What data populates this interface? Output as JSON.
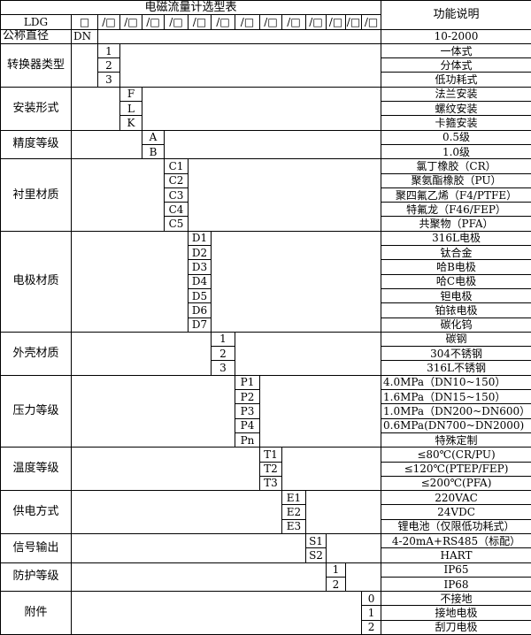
{
  "header": {
    "title": "电磁流量计选型表",
    "desc_title": "功能说明",
    "model": "LDG",
    "first_box": "□",
    "boxes": [
      "/□",
      "/□",
      "/□",
      "/□",
      "/□",
      "/□",
      "/□",
      "/□",
      "/□",
      "/□",
      "/□",
      "/□",
      "/□"
    ],
    "nominal_label": "公称直径",
    "nominal_code": "DN",
    "nominal_desc": "10-2000"
  },
  "groups": [
    {
      "label": "转换器类型",
      "col": 1,
      "codes": [
        "1",
        "2",
        "3"
      ],
      "descs": [
        "一体式",
        "分体式",
        "低功耗式"
      ]
    },
    {
      "label": "安装形式",
      "col": 2,
      "codes": [
        "F",
        "L",
        "K"
      ],
      "descs": [
        "法兰安装",
        "螺纹安装",
        "卡箍安装"
      ]
    },
    {
      "label": "精度等级",
      "col": 3,
      "codes": [
        "A",
        "B"
      ],
      "descs": [
        "0.5级",
        "1.0级"
      ]
    },
    {
      "label": "衬里材质",
      "col": 4,
      "codes": [
        "C1",
        "C2",
        "C3",
        "C4",
        "C5"
      ],
      "descs": [
        "氯丁橡胶（CR）",
        "聚氨酯橡胶（PU）",
        "聚四氟乙烯（F4/PTFE）",
        "特氟龙（F46/FEP）",
        "共聚物（PFA）"
      ]
    },
    {
      "label": "电极材质",
      "col": 5,
      "codes": [
        "D1",
        "D2",
        "D3",
        "D4",
        "D5",
        "D6",
        "D7"
      ],
      "descs": [
        "316L电极",
        "钛合金",
        "哈B电极",
        "哈C电极",
        "钽电极",
        "铂铱电极",
        "碳化钨"
      ]
    },
    {
      "label": "外壳材质",
      "col": 6,
      "codes": [
        "1",
        "2",
        "3"
      ],
      "descs": [
        "碳钢",
        "304不锈钢",
        "316L不锈钢"
      ]
    },
    {
      "label": "压力等级",
      "col": 7,
      "codes": [
        "P1",
        "P2",
        "P3",
        "P4",
        "Pn"
      ],
      "descs": [
        "4.0MPa（DN10~150）",
        "1.6MPa（DN15~150）",
        "1.0MPa（DN200~DN600）",
        "0.6MPa(DN700~DN2000)",
        "特殊定制"
      ],
      "left": [
        true,
        true,
        true,
        true,
        false
      ]
    },
    {
      "label": "温度等级",
      "col": 8,
      "codes": [
        "T1",
        "T2",
        "T3"
      ],
      "descs": [
        "≤80℃(CR/PU)",
        "≤120℃(PTEP/FEP)",
        "≤200℃(PFA)"
      ]
    },
    {
      "label": "供电方式",
      "col": 9,
      "codes": [
        "E1",
        "E2",
        "E3"
      ],
      "descs": [
        "220VAC",
        "24VDC",
        "锂电池（仅限低功耗式）"
      ]
    },
    {
      "label": "信号输出",
      "col": 10,
      "codes": [
        "S1",
        "S2"
      ],
      "descs": [
        "4-20mA+RS485（标配）",
        "HART"
      ]
    },
    {
      "label": "防护等级",
      "col": 11,
      "codes": [
        "1",
        "2"
      ],
      "descs": [
        "IP65",
        "IP68"
      ]
    },
    {
      "label": "附件",
      "col": 13,
      "codes": [
        "0",
        "1",
        "2"
      ],
      "descs": [
        "不接地",
        "接地电极",
        "刮刀电极"
      ]
    }
  ]
}
